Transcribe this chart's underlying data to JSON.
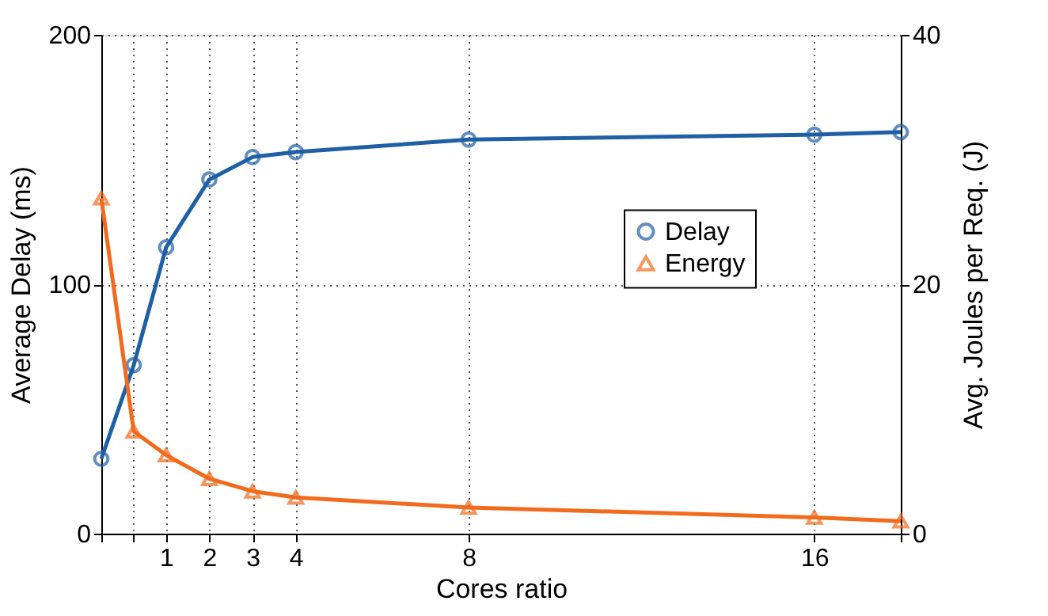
{
  "chart_data": {
    "type": "line",
    "xlabel": "Cores ratio",
    "ylabel": "Average Delay (ms)",
    "y2label": "Avg. Joules per Req. (J)",
    "x": [
      -0.5,
      0.25,
      1,
      2,
      3,
      4,
      8,
      16,
      18
    ],
    "xlim": [
      -0.5,
      18
    ],
    "xticks": [
      {
        "value": -0.5,
        "label": null
      },
      {
        "value": 0.25,
        "label": null
      },
      1,
      2,
      3,
      4,
      8,
      16,
      {
        "value": 18,
        "label": null
      }
    ],
    "ylim": [
      0,
      200
    ],
    "yticks": [
      0,
      100,
      200
    ],
    "y2lim": [
      0,
      40
    ],
    "y2ticks": [
      0,
      20,
      40
    ],
    "grid": true,
    "legend": "right",
    "line_style": "solid",
    "series": [
      {
        "name": "Delay",
        "color": "#1f5fa5",
        "marker": "circle",
        "values": [
          30,
          67.6,
          114.8,
          142,
          151,
          153,
          158,
          160,
          161
        ]
      },
      {
        "name": "Energy",
        "color": "#f26b1d",
        "marker": "triangle",
        "axis": "y2",
        "values": [
          26.9,
          8.2,
          6.3,
          4.4,
          3.4,
          2.9,
          2.1,
          1.3,
          1
        ]
      }
    ]
  }
}
